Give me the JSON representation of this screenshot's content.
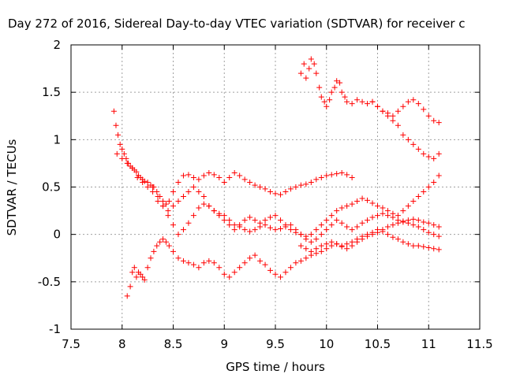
{
  "chart_data": {
    "type": "scatter",
    "title": "Day 272 of 2016, Sidereal Day-to-day VTEC variation (SDTVAR) for receiver c",
    "xlabel": "GPS time / hours",
    "ylabel": "SDTVAR / TECUs",
    "xlim": [
      7.5,
      11.5
    ],
    "ylim": [
      -1,
      2
    ],
    "xticks": [
      7.5,
      8,
      8.5,
      9,
      9.5,
      10,
      10.5,
      11,
      11.5
    ],
    "xtick_labels": [
      "7.5",
      "8",
      "8.5",
      "9",
      "9.5",
      "10",
      "10.5",
      "11",
      "11.5"
    ],
    "yticks": [
      -1,
      -0.5,
      0,
      0.5,
      1,
      1.5,
      2
    ],
    "ytick_labels": [
      "-1",
      "-0.5",
      "0",
      "0.5",
      "1",
      "1.5",
      "2"
    ],
    "grid": true,
    "marker": "+",
    "marker_color": "#ff0000",
    "series": [
      {
        "x": [
          7.92,
          7.94,
          7.96,
          7.98,
          8.0,
          8.02,
          8.04,
          8.06,
          8.08,
          8.1,
          8.12,
          8.14,
          8.16,
          8.18,
          8.2,
          8.22,
          8.25,
          8.28,
          8.31,
          8.34,
          8.37,
          8.4,
          8.43,
          8.46,
          8.5,
          8.55,
          8.6,
          8.65,
          8.7,
          8.75,
          8.8,
          8.85,
          8.9,
          8.95,
          9.0,
          9.05,
          9.1,
          9.15,
          9.2,
          9.25,
          9.3,
          9.35,
          9.4,
          9.45,
          9.5,
          9.55,
          9.6,
          9.65,
          9.7,
          9.75,
          9.8,
          9.85,
          9.9,
          9.95,
          10.0,
          10.05,
          10.1,
          10.15,
          10.2,
          10.25
        ],
        "y": [
          1.3,
          1.15,
          1.05,
          0.95,
          0.9,
          0.85,
          0.8,
          0.75,
          0.72,
          0.7,
          0.68,
          0.66,
          0.62,
          0.6,
          0.58,
          0.56,
          0.55,
          0.52,
          0.5,
          0.45,
          0.4,
          0.35,
          0.32,
          0.35,
          0.45,
          0.55,
          0.62,
          0.63,
          0.6,
          0.58,
          0.62,
          0.65,
          0.63,
          0.6,
          0.55,
          0.6,
          0.65,
          0.62,
          0.58,
          0.55,
          0.52,
          0.5,
          0.48,
          0.45,
          0.43,
          0.42,
          0.45,
          0.48,
          0.5,
          0.52,
          0.53,
          0.55,
          0.58,
          0.6,
          0.62,
          0.63,
          0.64,
          0.65,
          0.63,
          0.6
        ]
      },
      {
        "x": [
          7.95,
          8.0,
          8.05,
          8.1,
          8.15,
          8.2,
          8.25,
          8.3,
          8.35,
          8.4,
          8.45,
          8.5,
          8.55,
          8.6,
          8.65,
          8.7,
          8.75,
          8.8,
          8.85,
          8.9,
          8.95,
          9.0,
          9.05,
          9.1,
          9.15,
          9.2,
          9.25,
          9.3,
          9.35,
          9.4,
          9.45,
          9.5,
          9.55,
          9.6,
          9.65,
          9.7,
          9.75,
          9.8,
          9.85,
          9.9,
          9.95,
          10.0,
          10.05,
          10.1,
          10.15,
          10.2,
          10.25,
          10.3,
          10.35,
          10.4,
          10.45,
          10.5,
          10.55,
          10.6,
          10.65,
          10.7,
          10.75,
          10.8,
          10.85,
          10.9,
          10.95,
          11.0,
          11.05,
          11.1
        ],
        "y": [
          0.85,
          0.8,
          0.75,
          0.7,
          0.6,
          0.55,
          0.5,
          0.45,
          0.35,
          0.3,
          0.25,
          0.3,
          0.35,
          0.4,
          0.45,
          0.5,
          0.45,
          0.4,
          0.3,
          0.25,
          0.2,
          0.15,
          0.1,
          0.05,
          0.1,
          0.15,
          0.18,
          0.15,
          0.12,
          0.15,
          0.18,
          0.2,
          0.15,
          0.1,
          0.05,
          0.02,
          0.0,
          -0.02,
          0.0,
          0.05,
          0.1,
          0.15,
          0.2,
          0.25,
          0.28,
          0.3,
          0.32,
          0.35,
          0.38,
          0.36,
          0.33,
          0.3,
          0.28,
          0.25,
          0.22,
          0.2,
          0.25,
          0.3,
          0.35,
          0.4,
          0.45,
          0.5,
          0.55,
          0.62
        ]
      },
      {
        "x": [
          8.05,
          8.08,
          8.1,
          8.12,
          8.14,
          8.16,
          8.18,
          8.2,
          8.22,
          8.25,
          8.28,
          8.31,
          8.34,
          8.37,
          8.4,
          8.43,
          8.46,
          8.5,
          8.55,
          8.6,
          8.65,
          8.7,
          8.75,
          8.8,
          8.85,
          8.9,
          8.95,
          9.0,
          9.05,
          9.1,
          9.15,
          9.2,
          9.25,
          9.3,
          9.35,
          9.4,
          9.45,
          9.5,
          9.55,
          9.6,
          9.65,
          9.7,
          9.75,
          9.8,
          9.85,
          9.9,
          9.95,
          10.0,
          10.05,
          10.1,
          10.15,
          10.2,
          10.25,
          10.3,
          10.35,
          10.4,
          10.45,
          10.5,
          10.55,
          10.6,
          10.65,
          10.7,
          10.75,
          10.8,
          10.85,
          10.9,
          10.95,
          11.0,
          11.05,
          11.1
        ],
        "y": [
          -0.65,
          -0.55,
          -0.4,
          -0.35,
          -0.45,
          -0.4,
          -0.42,
          -0.45,
          -0.48,
          -0.35,
          -0.25,
          -0.18,
          -0.12,
          -0.08,
          -0.05,
          -0.08,
          -0.12,
          -0.18,
          -0.25,
          -0.28,
          -0.3,
          -0.32,
          -0.35,
          -0.3,
          -0.28,
          -0.3,
          -0.35,
          -0.42,
          -0.45,
          -0.4,
          -0.35,
          -0.3,
          -0.25,
          -0.22,
          -0.28,
          -0.32,
          -0.38,
          -0.42,
          -0.45,
          -0.4,
          -0.35,
          -0.3,
          -0.28,
          -0.25,
          -0.22,
          -0.2,
          -0.18,
          -0.15,
          -0.12,
          -0.1,
          -0.13,
          -0.15,
          -0.12,
          -0.08,
          -0.05,
          -0.02,
          0.0,
          0.02,
          0.05,
          0.08,
          0.1,
          0.12,
          0.13,
          0.12,
          0.1,
          0.08,
          0.05,
          0.02,
          0.0,
          -0.02
        ]
      },
      {
        "x": [
          8.3,
          8.35,
          8.4,
          8.45,
          8.5,
          8.55,
          8.6,
          8.65,
          8.7,
          8.75,
          8.8,
          8.85,
          8.9,
          8.95,
          9.0,
          9.05,
          9.1,
          9.15,
          9.2,
          9.25,
          9.3,
          9.35,
          9.4,
          9.45,
          9.5,
          9.55,
          9.6,
          9.65,
          9.7,
          9.75,
          9.8,
          9.85,
          9.9,
          9.95,
          10.0,
          10.05,
          10.1,
          10.15,
          10.2,
          10.25,
          10.3,
          10.35,
          10.4,
          10.45,
          10.5,
          10.55,
          10.6,
          10.65,
          10.7,
          10.75,
          10.8,
          10.85,
          10.9,
          10.95,
          11.0,
          11.05,
          11.1
        ],
        "y": [
          0.5,
          0.4,
          0.3,
          0.2,
          0.1,
          0.0,
          0.05,
          0.12,
          0.2,
          0.28,
          0.32,
          0.3,
          0.25,
          0.22,
          0.2,
          0.15,
          0.1,
          0.08,
          0.05,
          0.03,
          0.05,
          0.08,
          0.1,
          0.07,
          0.05,
          0.06,
          0.08,
          0.1,
          0.05,
          0.0,
          -0.05,
          -0.08,
          -0.05,
          0.0,
          0.05,
          0.1,
          0.15,
          0.12,
          0.08,
          0.05,
          0.08,
          0.12,
          0.15,
          0.18,
          0.2,
          0.22,
          0.2,
          0.18,
          0.15,
          0.14,
          0.15,
          0.16,
          0.15,
          0.13,
          0.12,
          0.1,
          0.08
        ]
      },
      {
        "x": [
          9.75,
          9.8,
          9.85,
          9.9,
          9.95,
          10.0,
          10.05,
          10.1,
          10.15,
          10.2,
          10.25,
          10.3,
          10.35,
          10.4,
          10.45,
          10.5,
          10.55,
          10.6,
          10.65,
          10.7,
          10.75,
          10.8,
          10.85,
          10.9,
          10.95,
          11.0,
          11.05,
          11.1
        ],
        "y": [
          -0.12,
          -0.15,
          -0.18,
          -0.15,
          -0.12,
          -0.1,
          -0.08,
          -0.1,
          -0.12,
          -0.1,
          -0.08,
          -0.05,
          -0.02,
          0.0,
          0.02,
          0.05,
          0.03,
          0.0,
          -0.03,
          -0.05,
          -0.08,
          -0.1,
          -0.12,
          -0.12,
          -0.13,
          -0.14,
          -0.15,
          -0.16
        ]
      },
      {
        "x": [
          9.75,
          9.78,
          9.8,
          9.83,
          9.85,
          9.88,
          9.9,
          9.93,
          9.95,
          9.98,
          10.0,
          10.03,
          10.05,
          10.08,
          10.1,
          10.13,
          10.15,
          10.18,
          10.2,
          10.25,
          10.3,
          10.35,
          10.4,
          10.45,
          10.5,
          10.55,
          10.6,
          10.65,
          10.7,
          10.75,
          10.8,
          10.85,
          10.9,
          10.95,
          11.0,
          11.05,
          11.1
        ],
        "y": [
          1.7,
          1.8,
          1.65,
          1.75,
          1.85,
          1.8,
          1.7,
          1.55,
          1.45,
          1.4,
          1.35,
          1.42,
          1.5,
          1.55,
          1.62,
          1.6,
          1.5,
          1.45,
          1.4,
          1.38,
          1.42,
          1.4,
          1.38,
          1.4,
          1.35,
          1.3,
          1.28,
          1.25,
          1.3,
          1.35,
          1.4,
          1.42,
          1.38,
          1.32,
          1.25,
          1.2,
          1.18
        ]
      },
      {
        "x": [
          10.45,
          10.5,
          10.55,
          10.6,
          10.65,
          10.7,
          10.75,
          10.8,
          10.85,
          10.9,
          10.95,
          11.0,
          11.05,
          11.1
        ],
        "y": [
          1.4,
          1.35,
          1.3,
          1.25,
          1.2,
          1.15,
          1.05,
          1.0,
          0.95,
          0.9,
          0.85,
          0.82,
          0.8,
          0.85
        ]
      }
    ]
  }
}
